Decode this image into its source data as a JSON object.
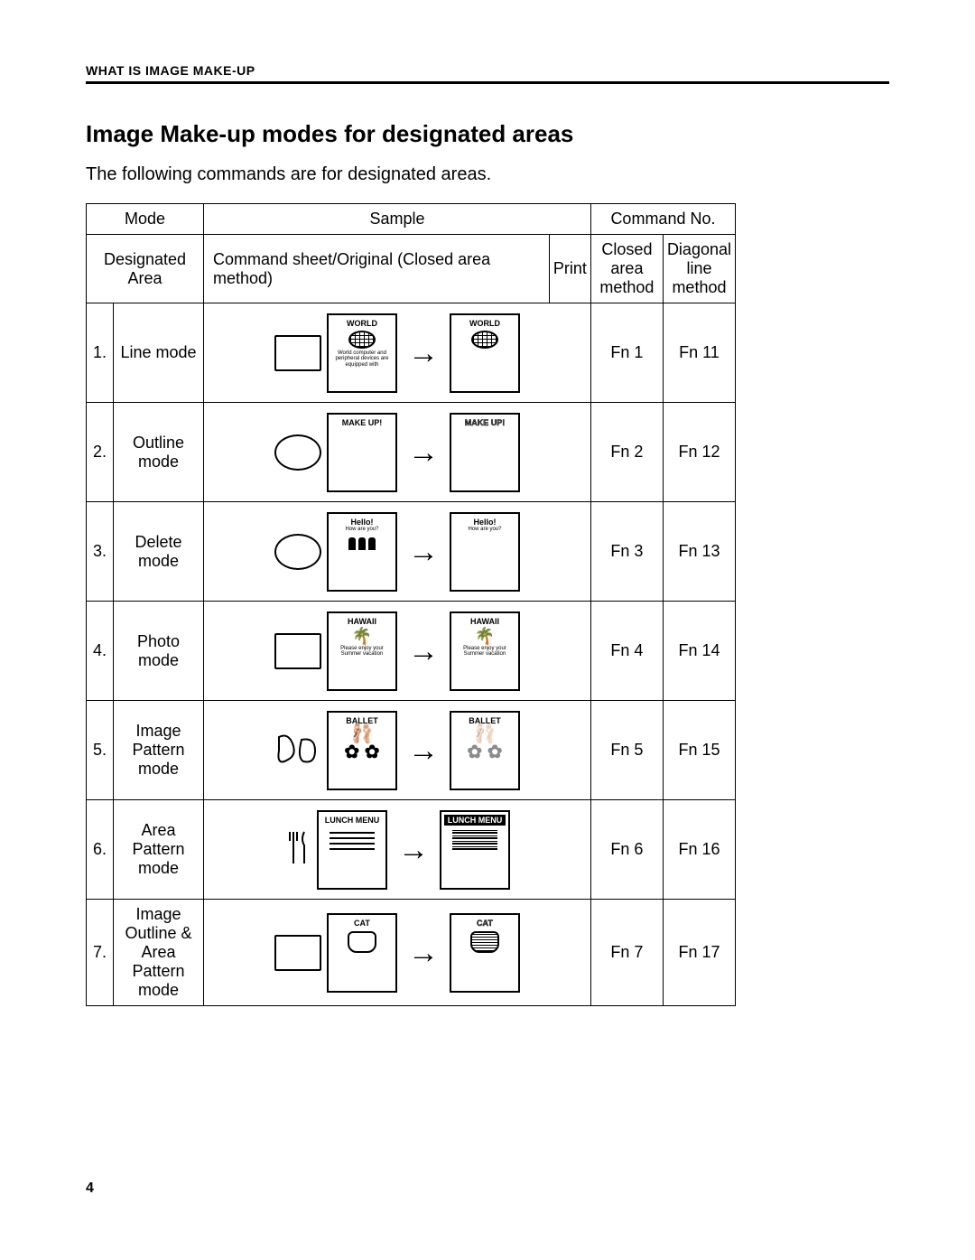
{
  "header": "WHAT IS IMAGE MAKE-UP",
  "title": "Image Make-up modes for designated areas",
  "subtitle": "The following commands are for designated areas.",
  "table": {
    "headers": {
      "mode": "Mode",
      "sample": "Sample",
      "command_no": "Command No.",
      "designated_area": "Designated Area",
      "command_sheet": "Command sheet/Original (Closed area method)",
      "print": "Print",
      "closed_area": "Closed area method",
      "diagonal_line": "Diagonal line method"
    },
    "rows": [
      {
        "n": "1.",
        "name": "Line mode",
        "shape": "rect",
        "orig_label": "WORLD",
        "orig_sub": "World computer and peripheral devices are equipped with",
        "print_label": "WORLD",
        "closed": "Fn 1",
        "diag": "Fn 11"
      },
      {
        "n": "2.",
        "name": "Outline mode",
        "shape": "oval",
        "orig_label": "MAKE UP!",
        "print_label": "MAKE UP!",
        "print_style": "outline",
        "closed": "Fn 2",
        "diag": "Fn 12"
      },
      {
        "n": "3.",
        "name": "Delete mode",
        "shape": "oval",
        "orig_label": "Hello!",
        "orig_sub2": "How are you?",
        "has_people": true,
        "print_label": "Hello!",
        "print_sub2": "How are you?",
        "print_people": false,
        "closed": "Fn 3",
        "diag": "Fn 13"
      },
      {
        "n": "4.",
        "name": "Photo mode",
        "shape": "rect",
        "orig_label": "HAWAII",
        "orig_sub": "Please enjoy your Summer vacation",
        "has_palm": true,
        "print_label": "HAWAII",
        "print_sub": "Please enjoy your Summer vacation",
        "closed": "Fn 4",
        "diag": "Fn 14"
      },
      {
        "n": "5.",
        "name": "Image Pattern mode",
        "shape": "curve",
        "orig_label": "BALLET",
        "has_dancer": true,
        "print_label": "BALLET",
        "print_dancer_dotted": true,
        "closed": "Fn 5",
        "diag": "Fn 15"
      },
      {
        "n": "6.",
        "name": "Area Pattern mode",
        "shape": "fork",
        "orig_label": "LUNCH MENU",
        "has_lines": true,
        "print_label": "LUNCH MENU",
        "print_label_inverted": true,
        "closed": "Fn 6",
        "diag": "Fn 16"
      },
      {
        "n": "7.",
        "name": "Image Outline & Area Pattern mode",
        "shape": "rect",
        "orig_label": "CAT",
        "has_cat": true,
        "print_label": "CAT",
        "print_label_outline": true,
        "print_cat_patterned": true,
        "closed": "Fn 7",
        "diag": "Fn 17"
      }
    ]
  },
  "page_number": "4"
}
